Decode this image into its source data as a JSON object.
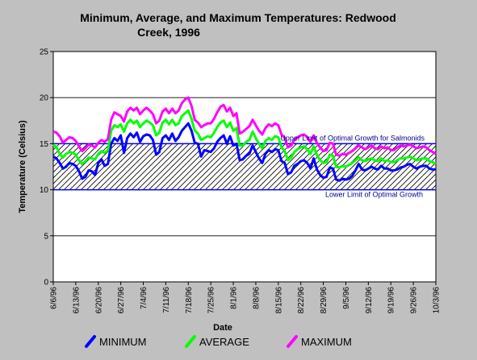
{
  "chart_data": {
    "type": "line",
    "title_lines": [
      "Minimum, Average, and Maximum Temperatures:  Redwood",
      "Creek, 1996"
    ],
    "xlabel": "Date",
    "ylabel": "Temperature (Celsius)",
    "ylim": [
      0,
      25
    ],
    "yticks": [
      0,
      5,
      10,
      15,
      20,
      25
    ],
    "grid": "horizontal",
    "legend_position": "bottom",
    "x_start": "6/6/96",
    "x_end": "10/3/96",
    "x_tick_labels": [
      "6/6/96",
      "6/13/96",
      "6/20/96",
      "6/27/96",
      "7/4/96",
      "7/11/96",
      "7/18/96",
      "7/25/96",
      "8/1/96",
      "8/8/96",
      "8/15/96",
      "8/22/96",
      "8/29/96",
      "9/5/96",
      "9/12/96",
      "9/19/96",
      "9/26/96",
      "10/3/96"
    ],
    "optimal_band": {
      "lower": 10,
      "upper": 15,
      "upper_label": "Upper Limit of Optimal Growth for Salmonids",
      "lower_label": "Lower Limit of Optimal Growth"
    },
    "series": [
      {
        "name": "MINIMUM",
        "color": "#0000ff",
        "values": [
          13.6,
          13.4,
          12.9,
          12.3,
          12.5,
          12.9,
          12.8,
          12.6,
          12.0,
          11.2,
          11.4,
          12.1,
          12.0,
          11.6,
          12.9,
          13.3,
          12.6,
          12.8,
          15.0,
          15.6,
          15.3,
          15.9,
          14.0,
          15.6,
          16.1,
          15.7,
          16.2,
          15.2,
          15.8,
          16.0,
          15.9,
          15.4,
          13.8,
          14.1,
          15.6,
          15.9,
          15.4,
          16.1,
          15.3,
          15.7,
          16.4,
          16.8,
          17.2,
          16.4,
          15.1,
          15.0,
          13.6,
          14.3,
          14.2,
          14.1,
          14.5,
          15.2,
          15.6,
          15.9,
          15.0,
          15.8,
          14.8,
          15.0,
          13.2,
          13.3,
          13.7,
          13.9,
          14.8,
          14.1,
          13.4,
          12.9,
          13.9,
          14.3,
          14.1,
          14.4,
          14.3,
          13.1,
          12.9,
          11.7,
          11.9,
          12.6,
          12.8,
          13.1,
          13.2,
          12.9,
          12.3,
          13.4,
          12.2,
          11.6,
          11.3,
          11.4,
          12.4,
          12.3,
          11.1,
          11.0,
          11.2,
          11.1,
          11.2,
          11.5,
          12.1,
          12.8,
          12.2,
          12.1,
          12.3,
          12.5,
          12.3,
          12.2,
          12.6,
          12.3,
          12.3,
          12.1,
          12.1,
          12.2,
          12.4,
          12.5,
          12.7,
          12.8,
          12.5,
          12.3,
          12.5,
          12.6,
          12.6,
          12.3,
          12.2,
          12.2
        ]
      },
      {
        "name": "AVERAGE",
        "color": "#00ff00",
        "values": [
          14.9,
          14.6,
          13.9,
          13.5,
          13.9,
          14.1,
          14.0,
          13.8,
          13.2,
          12.8,
          13.1,
          13.5,
          13.4,
          13.3,
          13.9,
          14.2,
          14.0,
          14.3,
          16.4,
          17.0,
          16.8,
          17.1,
          16.3,
          17.2,
          17.6,
          17.2,
          17.5,
          16.8,
          17.2,
          17.5,
          17.3,
          17.0,
          15.9,
          16.2,
          17.3,
          17.6,
          17.1,
          17.6,
          17.0,
          17.2,
          18.0,
          18.3,
          18.6,
          17.7,
          16.4,
          16.1,
          15.4,
          15.6,
          15.8,
          15.7,
          16.2,
          16.8,
          17.3,
          17.5,
          16.8,
          17.3,
          16.4,
          16.7,
          14.8,
          14.8,
          15.2,
          15.4,
          16.3,
          15.6,
          15.0,
          14.5,
          15.3,
          15.6,
          15.4,
          15.8,
          15.7,
          14.6,
          14.2,
          13.2,
          13.5,
          14.1,
          14.4,
          14.6,
          14.7,
          14.4,
          13.9,
          14.7,
          13.8,
          13.2,
          12.9,
          13.0,
          13.8,
          13.7,
          12.5,
          12.4,
          12.6,
          12.5,
          12.7,
          12.9,
          13.2,
          13.5,
          13.2,
          13.1,
          13.3,
          13.4,
          13.2,
          13.1,
          13.4,
          13.1,
          13.2,
          13.0,
          13.0,
          13.2,
          13.4,
          13.4,
          13.5,
          13.6,
          13.4,
          13.2,
          13.3,
          13.4,
          13.4,
          13.1,
          13.0,
          12.8
        ]
      },
      {
        "name": "MAXIMUM",
        "color": "#ff00ff",
        "values": [
          16.3,
          16.2,
          15.8,
          15.1,
          15.4,
          15.7,
          15.6,
          15.3,
          14.7,
          14.2,
          14.5,
          14.9,
          14.8,
          14.6,
          15.1,
          15.4,
          15.2,
          15.5,
          17.6,
          18.4,
          18.2,
          18.0,
          17.4,
          18.5,
          18.9,
          18.6,
          18.9,
          18.2,
          18.6,
          18.9,
          18.6,
          18.2,
          17.2,
          17.5,
          18.5,
          18.8,
          18.3,
          18.8,
          18.3,
          18.6,
          19.4,
          19.8,
          20.0,
          19.1,
          17.6,
          17.3,
          16.8,
          17.0,
          17.2,
          17.2,
          17.7,
          18.4,
          19.0,
          19.2,
          18.5,
          18.9,
          18.0,
          18.3,
          16.1,
          16.3,
          16.6,
          16.9,
          17.6,
          17.0,
          16.4,
          16.0,
          16.7,
          17.1,
          16.9,
          17.2,
          17.0,
          16.0,
          15.6,
          14.6,
          14.8,
          15.4,
          15.7,
          15.9,
          16.0,
          15.7,
          15.2,
          15.9,
          15.1,
          14.6,
          14.2,
          14.3,
          15.1,
          15.0,
          13.8,
          13.7,
          13.9,
          13.8,
          14.0,
          14.2,
          14.5,
          14.8,
          14.6,
          14.4,
          14.6,
          14.8,
          14.5,
          14.4,
          14.7,
          14.5,
          14.6,
          14.3,
          14.3,
          14.6,
          14.8,
          14.7,
          14.8,
          14.9,
          14.7,
          14.5,
          14.6,
          14.7,
          14.6,
          14.3,
          14.1,
          13.9
        ]
      }
    ]
  }
}
